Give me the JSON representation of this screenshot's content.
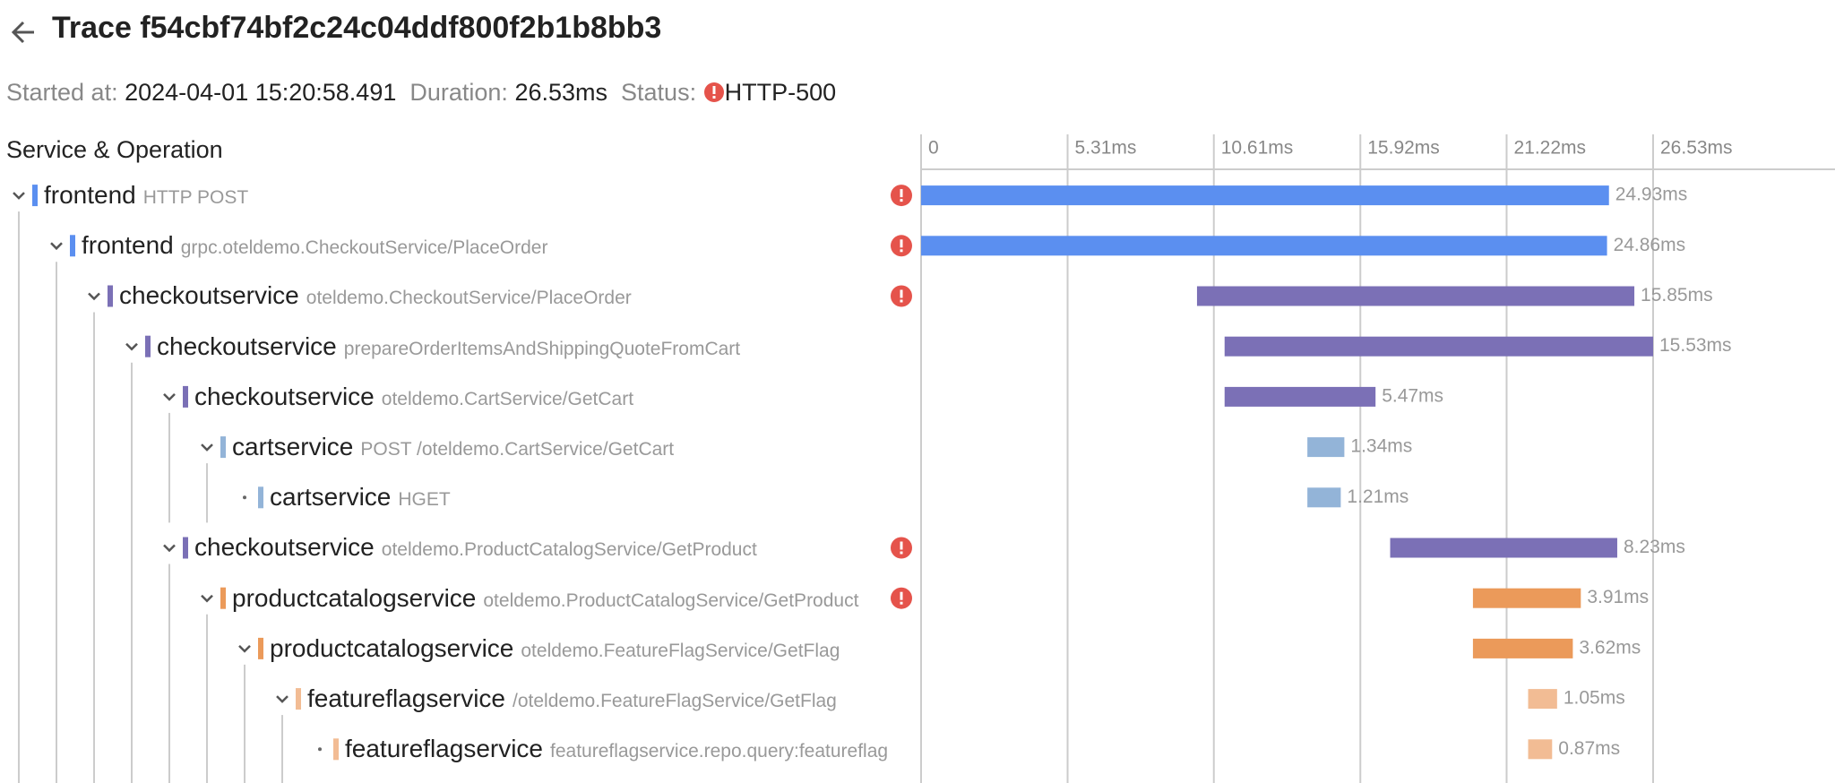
{
  "header": {
    "title": "Trace f54cbf74bf2c24c04ddf800f2b1b8bb3",
    "started_label": "Started at:",
    "started": "2024-04-01 15:20:58.491",
    "duration_label": "Duration:",
    "duration": "26.53ms",
    "status_label": "Status:",
    "status": "HTTP-500"
  },
  "columns": {
    "service": "Service & Operation"
  },
  "timeline": {
    "xlim": [
      0,
      26.53
    ],
    "xticks": [
      0,
      {
        "value": 5.31,
        "label": "5.31ms"
      },
      {
        "value": 10.61,
        "label": "10.61ms"
      },
      {
        "value": 15.92,
        "label": "15.92ms"
      },
      {
        "value": 21.22,
        "label": "21.22ms"
      },
      {
        "value": 26.53,
        "label": "26.53ms"
      }
    ]
  },
  "spans": [
    {
      "service": "frontend",
      "operation": "HTTP POST",
      "depth": 0,
      "error": true,
      "color": "#5b8ff0",
      "start": 0,
      "duration": {
        "value": 24.93,
        "label": "24.93ms"
      }
    },
    {
      "service": "frontend",
      "operation": "grpc.oteldemo.CheckoutService/PlaceOrder",
      "depth": 1,
      "error": true,
      "color": "#5b8ff0",
      "start": 0,
      "duration": {
        "value": 24.86,
        "label": "24.86ms"
      }
    },
    {
      "service": "checkoutservice",
      "operation": "oteldemo.CheckoutService/PlaceOrder",
      "depth": 2,
      "error": true,
      "color": "#7b70b6",
      "start": 10.0,
      "duration": {
        "value": 15.85,
        "label": "15.85ms"
      }
    },
    {
      "service": "checkoutservice",
      "operation": "prepareOrderItemsAndShippingQuoteFromCart",
      "depth": 3,
      "error": false,
      "color": "#7b70b6",
      "start": 11.0,
      "duration": {
        "value": 15.53,
        "label": "15.53ms"
      }
    },
    {
      "service": "checkoutservice",
      "operation": "oteldemo.CartService/GetCart",
      "depth": 4,
      "error": false,
      "color": "#7b70b6",
      "start": 11.0,
      "duration": {
        "value": 5.47,
        "label": "5.47ms"
      }
    },
    {
      "service": "cartservice",
      "operation": "POST /oteldemo.CartService/GetCart",
      "depth": 5,
      "error": false,
      "color": "#93b4d8",
      "start": 14.0,
      "duration": {
        "value": 1.34,
        "label": "1.34ms"
      }
    },
    {
      "service": "cartservice",
      "operation": "HGET",
      "depth": 6,
      "error": false,
      "color": "#93b4d8",
      "start": 14.0,
      "duration": {
        "value": 1.21,
        "label": "1.21ms"
      }
    },
    {
      "service": "checkoutservice",
      "operation": "oteldemo.ProductCatalogService/GetProduct",
      "depth": 4,
      "error": true,
      "color": "#7b70b6",
      "start": 17.0,
      "duration": {
        "value": 8.23,
        "label": "8.23ms"
      }
    },
    {
      "service": "productcatalogservice",
      "operation": "oteldemo.ProductCatalogService/GetProduct",
      "depth": 5,
      "error": true,
      "color": "#eb9a5a",
      "start": 20.0,
      "duration": {
        "value": 3.91,
        "label": "3.91ms"
      }
    },
    {
      "service": "productcatalogservice",
      "operation": "oteldemo.FeatureFlagService/GetFlag",
      "depth": 6,
      "error": false,
      "color": "#eb9a5a",
      "start": 20.0,
      "duration": {
        "value": 3.62,
        "label": "3.62ms"
      }
    },
    {
      "service": "featureflagservice",
      "operation": "/oteldemo.FeatureFlagService/GetFlag",
      "depth": 7,
      "error": false,
      "color": "#f2bc94",
      "start": 22.0,
      "duration": {
        "value": 1.05,
        "label": "1.05ms"
      }
    },
    {
      "service": "featureflagservice",
      "operation": "featureflagservice.repo.query:featureflag",
      "depth": 8,
      "error": false,
      "color": "#f2bc94",
      "start": 22.0,
      "duration": {
        "value": 0.87,
        "label": "0.87ms"
      }
    }
  ]
}
